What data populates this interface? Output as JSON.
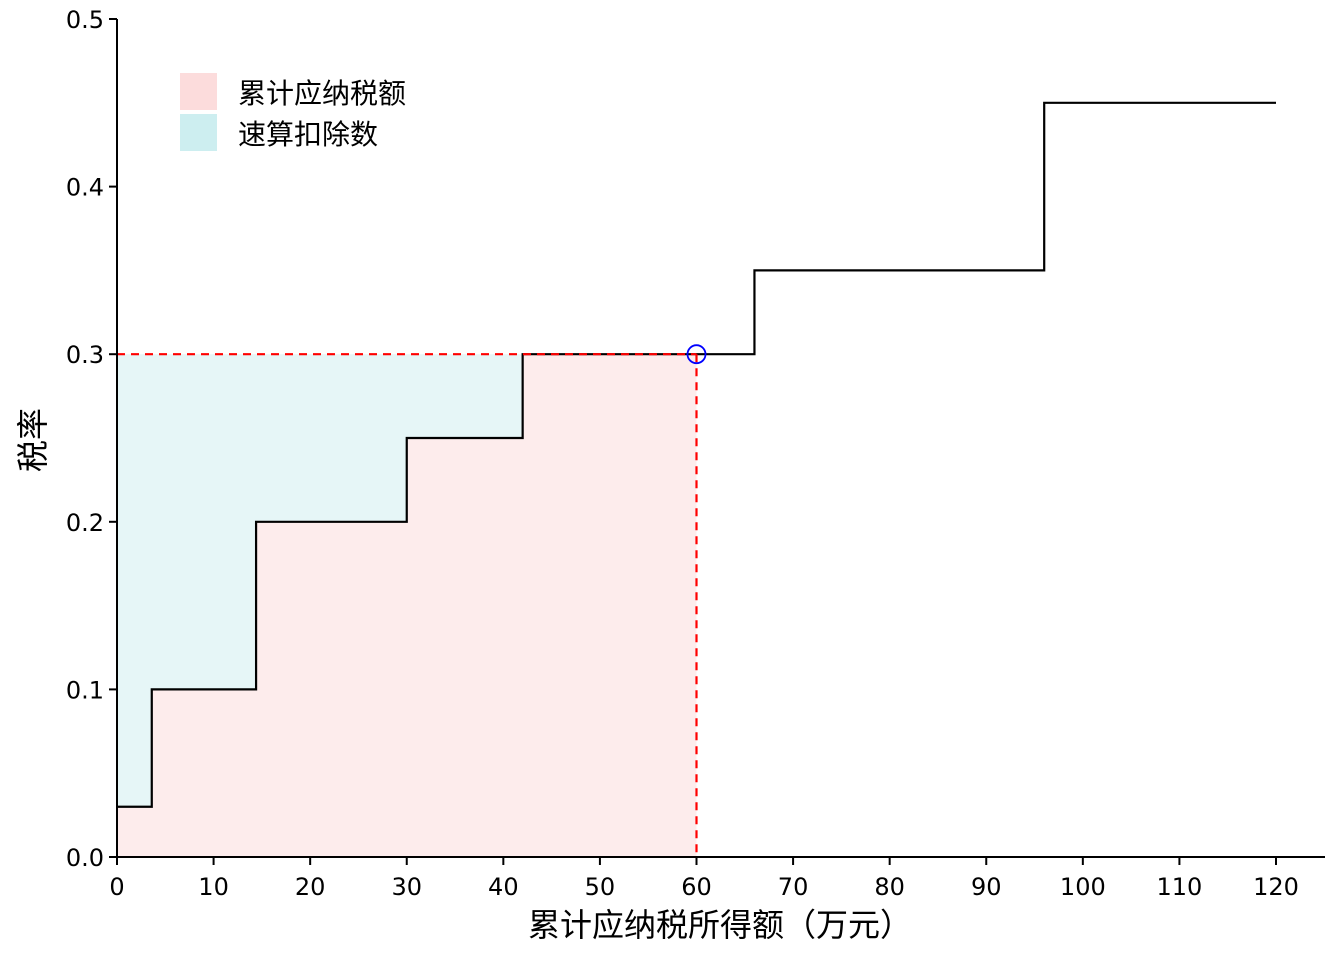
{
  "chart_data": {
    "type": "area",
    "xlabel": "累计应纳税所得额（万元）",
    "ylabel": "税率",
    "xlim": [
      0,
      120
    ],
    "ylim": [
      0,
      0.5
    ],
    "x_ticks": [
      0,
      10,
      20,
      30,
      40,
      50,
      60,
      70,
      80,
      90,
      100,
      110,
      120
    ],
    "y_ticks": [
      0.0,
      0.1,
      0.2,
      0.3,
      0.4,
      0.5
    ],
    "x_tick_labels": [
      "0",
      "10",
      "20",
      "30",
      "40",
      "50",
      "60",
      "70",
      "80",
      "90",
      "100",
      "110",
      "120"
    ],
    "y_tick_labels": [
      "0.0",
      "0.1",
      "0.2",
      "0.3",
      "0.4",
      "0.5"
    ],
    "grid": false,
    "legend_position": "top-left",
    "tax_brackets": {
      "x": [
        0,
        3.6,
        14.4,
        30,
        42,
        66,
        96,
        120
      ],
      "rates": [
        0.03,
        0.1,
        0.2,
        0.25,
        0.3,
        0.35,
        0.45
      ],
      "color": "#000000"
    },
    "series": [
      {
        "name": "累计应纳税额",
        "color": "#fcdcdc",
        "fill_opacity": 0.55
      },
      {
        "name": "速算扣除数",
        "color": "#cdeef0",
        "fill_opacity": 0.5
      }
    ],
    "marker": {
      "x": 60,
      "y": 0.3,
      "color": "#0000ff"
    },
    "reference_lines": {
      "x": 60,
      "y": 0.3,
      "color": "#ff0000",
      "style": "dashed"
    }
  }
}
